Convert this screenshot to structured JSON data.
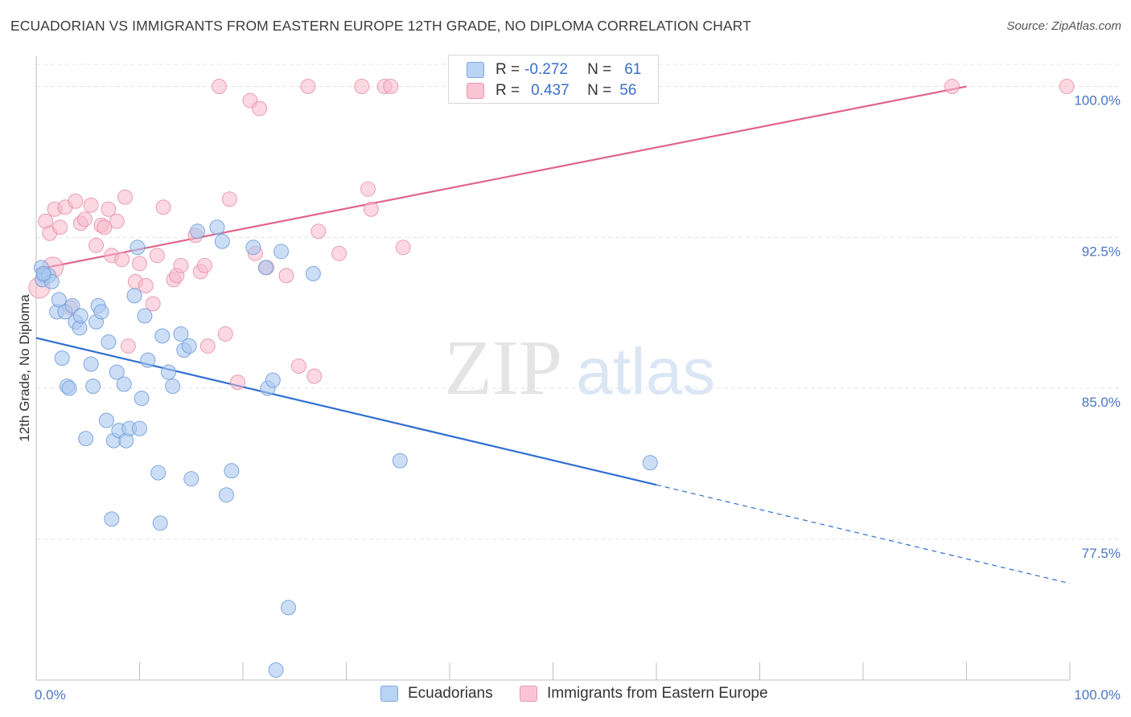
{
  "header": {
    "title": "ECUADORIAN VS IMMIGRANTS FROM EASTERN EUROPE 12TH GRADE, NO DIPLOMA CORRELATION CHART",
    "source": "Source: ZipAtlas.com"
  },
  "watermark": {
    "zip": "ZIP",
    "atlas": "atlas"
  },
  "legend": {
    "rows": [
      {
        "r_label": "R =",
        "r_value": "-0.272",
        "n_label": "N =",
        "n_value": "61"
      },
      {
        "r_label": "R =",
        "r_value": "0.437",
        "n_label": "N =",
        "n_value": "56"
      }
    ]
  },
  "bottom_legend": {
    "series1": "Ecuadorians",
    "series2": "Immigrants from Eastern Europe"
  },
  "colors": {
    "blue_fill": "#aac8f0",
    "blue_stroke": "#6b9bd8",
    "blue_line": "#2f6fd0",
    "pink_fill": "#f7b8cb",
    "pink_stroke": "#e58aa6",
    "pink_line": "#e0648c",
    "tick_label": "#4a76c4",
    "grid": "#e3e3e3"
  },
  "chart_data": {
    "type": "scatter",
    "title": "ECUADORIAN VS IMMIGRANTS FROM EASTERN EUROPE 12TH GRADE, NO DIPLOMA CORRELATION CHART",
    "xlabel": "",
    "ylabel": "12th Grade, No Diploma",
    "xlim": [
      0,
      100
    ],
    "ylim": [
      70.5,
      101.5
    ],
    "x_tick_labels": [
      "0.0%",
      "100.0%"
    ],
    "y_ticks": [
      {
        "value": 100,
        "label": "100.0%"
      },
      {
        "value": 92.5,
        "label": "92.5%"
      },
      {
        "value": 85,
        "label": "85.0%"
      },
      {
        "value": 77.5,
        "label": "77.5%"
      }
    ],
    "grid": "horizontal dashed",
    "legend_position": "top-center",
    "series": [
      {
        "name": "Ecuadorians",
        "R": -0.272,
        "N": 61,
        "trend": {
          "x0": 0,
          "y0": 87.5,
          "x1": 60,
          "y1": 80.2,
          "dashed_to_x": 100,
          "dashed_to_y": 75.3
        },
        "points": [
          [
            0.5,
            91.0
          ],
          [
            0.8,
            90.6
          ],
          [
            0.6,
            90.4
          ],
          [
            1.2,
            90.6
          ],
          [
            1.5,
            90.3
          ],
          [
            2.0,
            88.8
          ],
          [
            2.2,
            89.4
          ],
          [
            2.5,
            86.5
          ],
          [
            2.8,
            88.8
          ],
          [
            3.0,
            85.1
          ],
          [
            3.2,
            85.0
          ],
          [
            3.5,
            89.1
          ],
          [
            3.8,
            88.3
          ],
          [
            4.2,
            88.0
          ],
          [
            4.3,
            88.6
          ],
          [
            4.8,
            82.5
          ],
          [
            5.3,
            86.2
          ],
          [
            5.5,
            85.1
          ],
          [
            5.8,
            88.3
          ],
          [
            6.0,
            89.1
          ],
          [
            6.3,
            88.8
          ],
          [
            6.8,
            83.4
          ],
          [
            7.0,
            87.3
          ],
          [
            7.3,
            78.5
          ],
          [
            7.5,
            82.4
          ],
          [
            7.8,
            85.8
          ],
          [
            8.0,
            82.9
          ],
          [
            8.5,
            85.2
          ],
          [
            8.7,
            82.4
          ],
          [
            9.0,
            83.0
          ],
          [
            9.5,
            89.6
          ],
          [
            9.8,
            92.0
          ],
          [
            10.0,
            83.0
          ],
          [
            10.2,
            84.5
          ],
          [
            10.5,
            88.6
          ],
          [
            10.8,
            86.4
          ],
          [
            11.8,
            80.8
          ],
          [
            12.0,
            78.3
          ],
          [
            12.2,
            87.6
          ],
          [
            12.8,
            85.8
          ],
          [
            13.2,
            85.1
          ],
          [
            14.0,
            87.7
          ],
          [
            14.3,
            86.9
          ],
          [
            14.8,
            87.1
          ],
          [
            15.0,
            80.5
          ],
          [
            15.6,
            92.8
          ],
          [
            17.5,
            93.0
          ],
          [
            18.0,
            92.3
          ],
          [
            18.4,
            79.7
          ],
          [
            18.9,
            80.9
          ],
          [
            21.0,
            92.0
          ],
          [
            22.2,
            91.0
          ],
          [
            22.4,
            85.0
          ],
          [
            22.9,
            85.4
          ],
          [
            23.2,
            71.0
          ],
          [
            23.7,
            91.8
          ],
          [
            24.4,
            74.1
          ],
          [
            26.8,
            90.7
          ],
          [
            35.2,
            81.4
          ],
          [
            59.4,
            81.3
          ],
          [
            0.7,
            90.7
          ]
        ]
      },
      {
        "name": "Immigrants from Eastern Europe",
        "R": 0.437,
        "N": 56,
        "trend": {
          "x0": 0,
          "y0": 90.9,
          "x1": 90,
          "y1": 100.0
        },
        "points": [
          [
            0.3,
            90.0
          ],
          [
            0.9,
            93.3
          ],
          [
            1.3,
            92.7
          ],
          [
            1.8,
            93.9
          ],
          [
            2.3,
            93.0
          ],
          [
            2.8,
            94.0
          ],
          [
            3.3,
            89.0
          ],
          [
            3.8,
            94.3
          ],
          [
            4.3,
            93.2
          ],
          [
            4.7,
            93.4
          ],
          [
            5.3,
            94.1
          ],
          [
            5.8,
            92.1
          ],
          [
            6.3,
            93.1
          ],
          [
            6.6,
            93.0
          ],
          [
            7.0,
            93.9
          ],
          [
            7.3,
            91.6
          ],
          [
            7.8,
            93.3
          ],
          [
            8.3,
            91.4
          ],
          [
            8.6,
            94.5
          ],
          [
            8.9,
            87.1
          ],
          [
            9.6,
            90.3
          ],
          [
            10.0,
            91.2
          ],
          [
            10.6,
            90.1
          ],
          [
            11.3,
            89.2
          ],
          [
            11.7,
            91.6
          ],
          [
            12.3,
            94.0
          ],
          [
            13.3,
            90.4
          ],
          [
            13.6,
            90.6
          ],
          [
            14.0,
            91.1
          ],
          [
            15.4,
            92.6
          ],
          [
            15.9,
            90.8
          ],
          [
            16.3,
            91.1
          ],
          [
            16.6,
            87.1
          ],
          [
            17.7,
            100.0
          ],
          [
            18.3,
            87.7
          ],
          [
            18.7,
            94.4
          ],
          [
            19.5,
            85.3
          ],
          [
            20.7,
            99.3
          ],
          [
            21.2,
            91.7
          ],
          [
            21.6,
            98.9
          ],
          [
            22.3,
            91.0
          ],
          [
            24.2,
            90.6
          ],
          [
            25.4,
            86.1
          ],
          [
            26.3,
            100.0
          ],
          [
            26.9,
            85.6
          ],
          [
            27.3,
            92.8
          ],
          [
            29.3,
            91.7
          ],
          [
            31.5,
            100.0
          ],
          [
            32.1,
            94.9
          ],
          [
            32.4,
            93.9
          ],
          [
            33.7,
            100.0
          ],
          [
            34.3,
            100.0
          ],
          [
            35.5,
            92.0
          ],
          [
            88.6,
            100.0
          ],
          [
            99.7,
            100.0
          ],
          [
            1.6,
            91.0
          ]
        ]
      }
    ]
  }
}
